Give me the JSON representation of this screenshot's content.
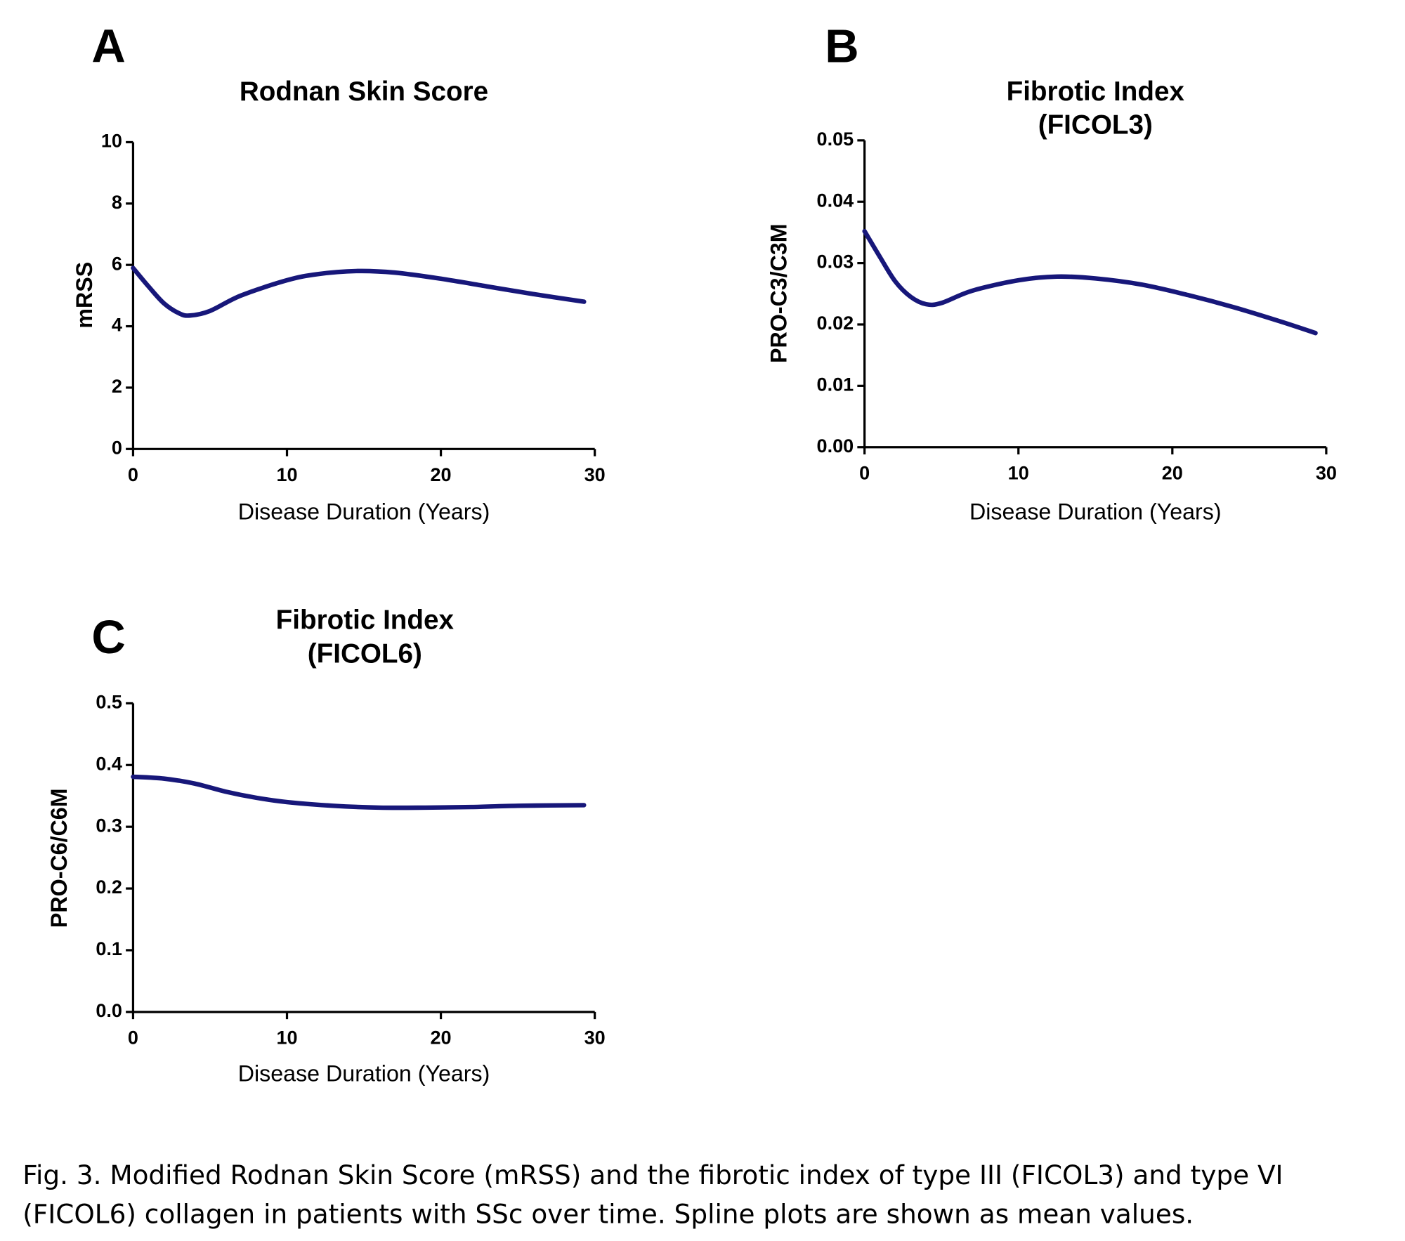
{
  "chart_data": [
    {
      "type": "line",
      "panel": "A",
      "title": [
        "Rodnan Skin  Score"
      ],
      "xlabel": "Disease Duration (Years)",
      "ylabel": "mRSS",
      "x": [
        0,
        1,
        2,
        3,
        3.7,
        5,
        7,
        10,
        12,
        14.5,
        17,
        20,
        23,
        26,
        29.3
      ],
      "series": [
        {
          "color": "#17177a",
          "values": [
            5.9,
            5.3,
            4.75,
            4.42,
            4.35,
            4.5,
            5.0,
            5.5,
            5.7,
            5.8,
            5.75,
            5.55,
            5.3,
            5.05,
            4.8
          ]
        }
      ],
      "xlim": [
        0,
        30
      ],
      "xticks": [
        0,
        10,
        20,
        30
      ],
      "ylim": [
        0,
        10
      ],
      "yticks": [
        0,
        2,
        4,
        6,
        8,
        10
      ]
    },
    {
      "type": "line",
      "panel": "B",
      "title": [
        "Fibrotic Index",
        "(FICOL3)"
      ],
      "xlabel": "Disease Duration (Years)",
      "ylabel": "PRO-C3/C3M",
      "x": [
        0,
        1,
        2,
        3,
        4,
        5,
        7,
        10,
        12.5,
        15,
        18,
        21,
        24,
        27,
        29.3
      ],
      "series": [
        {
          "color": "#17177a",
          "values": [
            0.0352,
            0.031,
            0.027,
            0.0245,
            0.0233,
            0.0235,
            0.0255,
            0.0272,
            0.0278,
            0.0275,
            0.0265,
            0.0248,
            0.0228,
            0.0205,
            0.0186
          ]
        }
      ],
      "xlim": [
        0,
        30
      ],
      "xticks": [
        0,
        10,
        20,
        30
      ],
      "ylim": [
        0,
        0.05
      ],
      "yticks": [
        {
          "value": 0,
          "label": "0.00"
        },
        0.01,
        0.02,
        0.03,
        0.04,
        0.05
      ]
    },
    {
      "type": "line",
      "panel": "C",
      "title": [
        "Fibrotic Index",
        "(FICOL6)"
      ],
      "xlabel": "Disease Duration (Years)",
      "ylabel": "PRO-C6/C6M",
      "x": [
        0,
        2,
        4,
        6,
        8,
        10,
        13,
        16,
        19,
        22,
        25,
        29.3
      ],
      "series": [
        {
          "color": "#17177a",
          "values": [
            0.381,
            0.378,
            0.37,
            0.357,
            0.347,
            0.34,
            0.334,
            0.331,
            0.331,
            0.332,
            0.334,
            0.335
          ]
        }
      ],
      "xlim": [
        0,
        30
      ],
      "xticks": [
        0,
        10,
        20,
        30
      ],
      "ylim": [
        0,
        0.5
      ],
      "yticks": [
        {
          "value": 0,
          "label": "0.0"
        },
        0.1,
        0.2,
        0.3,
        0.4,
        0.5
      ]
    }
  ],
  "caption": [
    "Fig. 3. Modified Rodnan Skin Score (mRSS) and the fibrotic index of type III (FICOL3) and type VI",
    "(FICOL6) collagen in patients with SSc over time. Spline plots are shown as mean values."
  ]
}
